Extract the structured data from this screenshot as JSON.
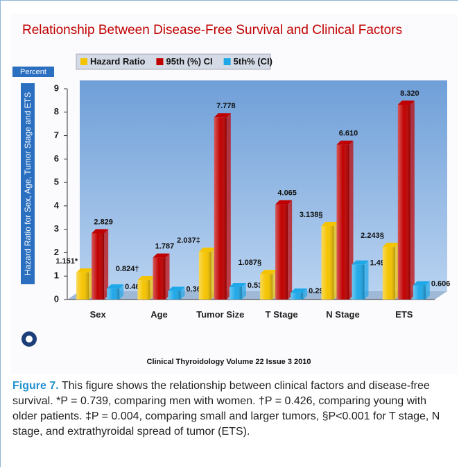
{
  "chart_data": {
    "type": "bar",
    "title": "Relationship Between Disease-Free Survival and Clinical Factors",
    "unit_label": "Percent",
    "y_label": "Hazard Ratio for Sex, Age, Tumor Stage and ETS",
    "categories": [
      "Sex",
      "Age",
      "Tumor Size",
      "T Stage",
      "N Stage",
      "ETS"
    ],
    "series": [
      {
        "name": "Hazard Ratio",
        "color": "#f5c400",
        "values": [
          1.151,
          0.824,
          2.037,
          1.087,
          3.138,
          2.243
        ],
        "value_labels": [
          "1.151*",
          "0.824†",
          "2.037‡",
          "1.087§",
          "3.138§",
          "2.243§"
        ]
      },
      {
        "name": "95th (%) CI",
        "color": "#c00000",
        "values": [
          2.829,
          1.787,
          7.778,
          4.065,
          6.61,
          8.32
        ],
        "value_labels": [
          "2.829",
          "1.787",
          "7.778",
          "4.065",
          "6.610",
          "8.320"
        ]
      },
      {
        "name": "5th% (CI)",
        "color": "#1fa8e8",
        "values": [
          0.469,
          0.369,
          0.534,
          0.291,
          1.49,
          0.606
        ]
      }
    ],
    "ylim": [
      0,
      9
    ],
    "yticks": [
      0,
      1,
      2,
      3,
      4,
      5,
      6,
      7,
      8,
      9
    ],
    "grid": false
  },
  "footer": "Clinical Thyroidology Volume 22 Issue 3 2010",
  "caption": {
    "label": "Figure 7.",
    "text": "This figure shows the relationship between clinical factors and disease-free survival. *P = 0.739, comparing men with women. †P = 0.426, comparing young with older patients. ‡P = 0.004, comparing small and larger tumors, §P<0.001 for T stage, N stage, and extrathyroidal spread of tumor (ETS)."
  }
}
